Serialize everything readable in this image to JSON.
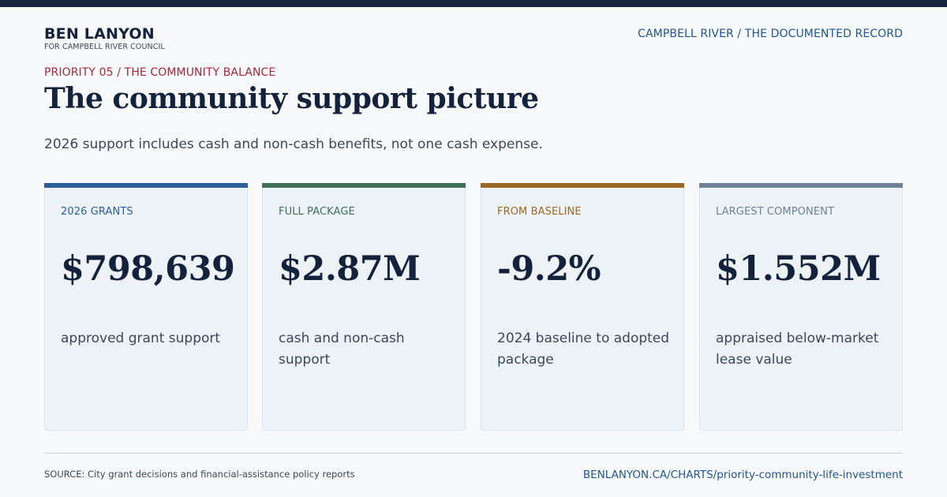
{
  "header": {
    "brand_name": "BEN LANYON",
    "brand_sub": "FOR CAMPBELL RIVER COUNCIL",
    "top_right": "CAMPBELL RIVER / THE DOCUMENTED RECORD"
  },
  "kicker": "PRIORITY 05 / THE COMMUNITY BALANCE",
  "title": "The community support picture",
  "subtitle": "2026 support includes cash and non-cash benefits, not one cash expense.",
  "cards": [
    {
      "label": "2026 GRANTS",
      "value": "$798,639",
      "desc": "approved grant support",
      "color": "#2a5f9a"
    },
    {
      "label": "FULL PACKAGE",
      "value": "$2.87M",
      "desc": "cash and non-cash support",
      "color": "#3f7057"
    },
    {
      "label": "FROM BASELINE",
      "value": "-9.2%",
      "desc": "2024 baseline to adopted package",
      "color": "#9c6a24"
    },
    {
      "label": "LARGEST COMPONENT",
      "value": "$1.552M",
      "desc": "appraised below-market lease value",
      "color": "#6f8193"
    }
  ],
  "footer": {
    "source": "SOURCE: City grant decisions and financial-assistance policy reports",
    "url": "BENLANYON.CA/CHARTS/priority-community-life-investment"
  }
}
